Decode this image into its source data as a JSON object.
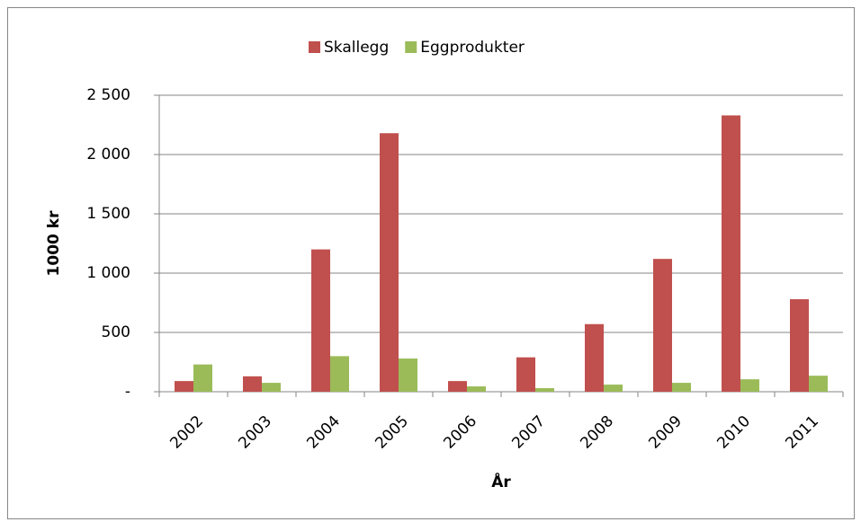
{
  "chart_data": {
    "type": "bar",
    "categories": [
      "2002",
      "2003",
      "2004",
      "2005",
      "2006",
      "2007",
      "2008",
      "2009",
      "2010",
      "2011"
    ],
    "series": [
      {
        "name": "Skallegg",
        "color": "#c0504d",
        "values": [
          90,
          130,
          1200,
          2180,
          90,
          290,
          570,
          1120,
          2330,
          780
        ]
      },
      {
        "name": "Eggprodukter",
        "color": "#9bbb59",
        "values": [
          230,
          75,
          300,
          280,
          45,
          30,
          60,
          75,
          105,
          135
        ]
      }
    ],
    "xlabel": "År",
    "ylabel": "1000 kr",
    "ylim": [
      0,
      2500
    ],
    "yticks": [
      {
        "value": 0,
        "label": "-"
      },
      500,
      {
        "value": 1000,
        "label": "1 000"
      },
      {
        "value": 1500,
        "label": "1 500"
      },
      {
        "value": 2000,
        "label": "2 000"
      },
      {
        "value": 2500,
        "label": "2 500"
      }
    ],
    "grid": true,
    "legend": "top"
  }
}
